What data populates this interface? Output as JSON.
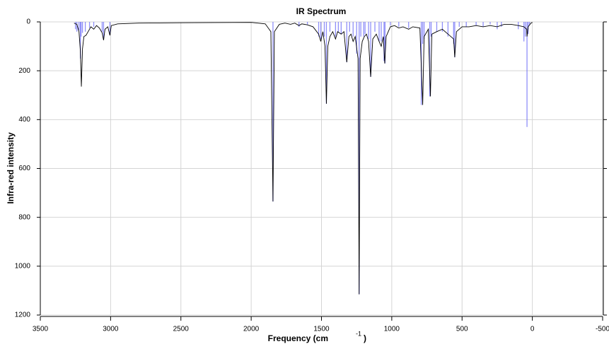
{
  "chart_data": {
    "type": "spectrum",
    "title": "IR Spectrum",
    "xlabel": "Frequency (cm",
    "xlabel_sup": "-1",
    "xlabel_end": ")",
    "ylabel": "Infra-red intensity",
    "xlim": [
      3500,
      -500
    ],
    "ylim": [
      0,
      1200
    ],
    "yaxis_inverted": true,
    "xticks": [
      3500,
      3000,
      2500,
      2000,
      1500,
      1000,
      500,
      0,
      -500
    ],
    "yticks": [
      0,
      200,
      400,
      600,
      800,
      1000,
      1200
    ],
    "grid": true,
    "sticks": {
      "color": "#6b6bf5",
      "x": [
        3250,
        3240,
        3225,
        3215,
        3210,
        3200,
        3180,
        3150,
        3120,
        3060,
        3050,
        3005,
        1845,
        1660,
        1600,
        1520,
        1505,
        1480,
        1465,
        1440,
        1400,
        1380,
        1360,
        1320,
        1300,
        1275,
        1250,
        1232,
        1220,
        1200,
        1190,
        1165,
        1150,
        1120,
        1090,
        1075,
        1055,
        1048,
        1010,
        950,
        880,
        790,
        780,
        770,
        730,
        720,
        680,
        640,
        600,
        560,
        552,
        520,
        470,
        400,
        350,
        300,
        250,
        220,
        100,
        60,
        50,
        38,
        30,
        20
      ],
      "values": [
        30,
        40,
        35,
        150,
        60,
        45,
        40,
        25,
        20,
        40,
        70,
        55,
        735,
        20,
        10,
        60,
        70,
        60,
        335,
        40,
        60,
        40,
        50,
        165,
        40,
        60,
        130,
        1115,
        60,
        60,
        50,
        70,
        225,
        40,
        80,
        80,
        160,
        170,
        15,
        20,
        25,
        340,
        90,
        70,
        305,
        60,
        40,
        40,
        60,
        90,
        145,
        20,
        20,
        15,
        20,
        10,
        30,
        20,
        30,
        80,
        60,
        430,
        50,
        10
      ]
    },
    "curve": {
      "color": "#000000",
      "x": [
        3260,
        3240,
        3225,
        3215,
        3208,
        3200,
        3190,
        3175,
        3160,
        3140,
        3120,
        3100,
        3080,
        3060,
        3050,
        3040,
        3020,
        3005,
        2995,
        2950,
        2800,
        2400,
        2000,
        1900,
        1860,
        1845,
        1835,
        1800,
        1760,
        1720,
        1690,
        1660,
        1640,
        1600,
        1560,
        1520,
        1505,
        1490,
        1475,
        1465,
        1455,
        1440,
        1420,
        1400,
        1385,
        1360,
        1340,
        1320,
        1305,
        1290,
        1275,
        1260,
        1240,
        1232,
        1225,
        1210,
        1195,
        1180,
        1165,
        1150,
        1135,
        1110,
        1090,
        1075,
        1060,
        1050,
        1040,
        1010,
        980,
        950,
        920,
        880,
        850,
        800,
        780,
        770,
        740,
        725,
        715,
        680,
        640,
        600,
        560,
        552,
        540,
        500,
        450,
        400,
        350,
        300,
        250,
        200,
        150,
        100,
        60,
        40,
        38,
        30,
        10,
        0
      ],
      "values": [
        5,
        10,
        40,
        120,
        265,
        110,
        60,
        55,
        40,
        20,
        30,
        15,
        25,
        45,
        75,
        30,
        20,
        55,
        15,
        8,
        5,
        3,
        2,
        8,
        40,
        735,
        40,
        10,
        5,
        10,
        5,
        15,
        8,
        12,
        20,
        50,
        80,
        40,
        100,
        335,
        100,
        60,
        40,
        70,
        40,
        50,
        40,
        165,
        60,
        50,
        80,
        60,
        150,
        1115,
        150,
        80,
        60,
        50,
        80,
        225,
        70,
        50,
        80,
        100,
        60,
        170,
        60,
        20,
        15,
        25,
        20,
        30,
        20,
        25,
        340,
        60,
        30,
        305,
        50,
        40,
        30,
        50,
        70,
        145,
        40,
        20,
        20,
        15,
        20,
        15,
        20,
        10,
        10,
        15,
        20,
        30,
        60,
        20,
        5,
        2
      ]
    }
  }
}
